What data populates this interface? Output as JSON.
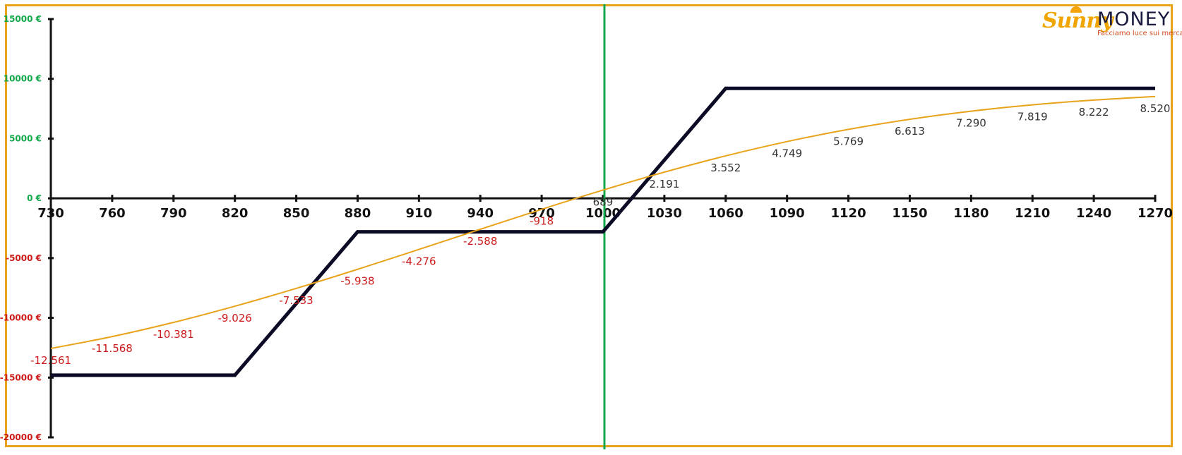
{
  "logo": {
    "brand_sunny": "Sunny",
    "brand_money": "MONEY",
    "tagline": "Facciamo luce sui mercati"
  },
  "colors": {
    "frame": "#e8a31b",
    "payoff_line": "#0b0b26",
    "curve_line": "#e8a31b",
    "vertical_marker": "#12a84a",
    "positive_label": "#333333",
    "negative_label": "#cc1a1a",
    "positive_tick": "#12a84a",
    "negative_tick": "#cc1a1a",
    "axis": "#111111"
  },
  "chart_data": {
    "type": "line",
    "title": "",
    "xlabel": "",
    "ylabel": "",
    "xlim": [
      730,
      1270
    ],
    "ylim": [
      -20000,
      15000
    ],
    "x_ticks": [
      "730",
      "760",
      "790",
      "820",
      "850",
      "880",
      "910",
      "940",
      "970",
      "1000",
      "1030",
      "1060",
      "1090",
      "1120",
      "1150",
      "1180",
      "1210",
      "1240",
      "1270"
    ],
    "y_ticks": [
      {
        "value": 15000,
        "label": "15000 €"
      },
      {
        "value": 10000,
        "label": "10000 €"
      },
      {
        "value": 5000,
        "label": "5000 €"
      },
      {
        "value": 0,
        "label": "0 €"
      },
      {
        "value": -5000,
        "label": "-5000 €"
      },
      {
        "value": -10000,
        "label": "-10000 €"
      },
      {
        "value": -15000,
        "label": "-15000 €"
      },
      {
        "value": -20000,
        "label": "-20000 €"
      }
    ],
    "vertical_marker_x": 1000,
    "grid": false,
    "series": [
      {
        "style": "payoff-at-expiry",
        "points": [
          [
            730,
            -14800
          ],
          [
            820,
            -14800
          ],
          [
            880,
            -2800
          ],
          [
            1000,
            -2800
          ],
          [
            1060,
            9200
          ],
          [
            1270,
            9200
          ]
        ]
      },
      {
        "style": "current-value-curve",
        "x": [
          730,
          760,
          790,
          820,
          850,
          880,
          910,
          940,
          970,
          1000,
          1030,
          1060,
          1090,
          1120,
          1150,
          1180,
          1210,
          1240,
          1270
        ],
        "values": [
          -12561,
          -11568,
          -10381,
          -9026,
          -7533,
          -5938,
          -4276,
          -2588,
          -918,
          689,
          2191,
          3552,
          4749,
          5769,
          6613,
          7290,
          7819,
          8222,
          8520
        ],
        "labels": [
          "-12.561",
          "-11.568",
          "-10.381",
          "-9.026",
          "-7.533",
          "-5.938",
          "-4.276",
          "-2.588",
          "-918",
          "689",
          "2.191",
          "3.552",
          "4.749",
          "5.769",
          "6.613",
          "7.290",
          "7.819",
          "8.222",
          "8.520"
        ]
      }
    ]
  }
}
